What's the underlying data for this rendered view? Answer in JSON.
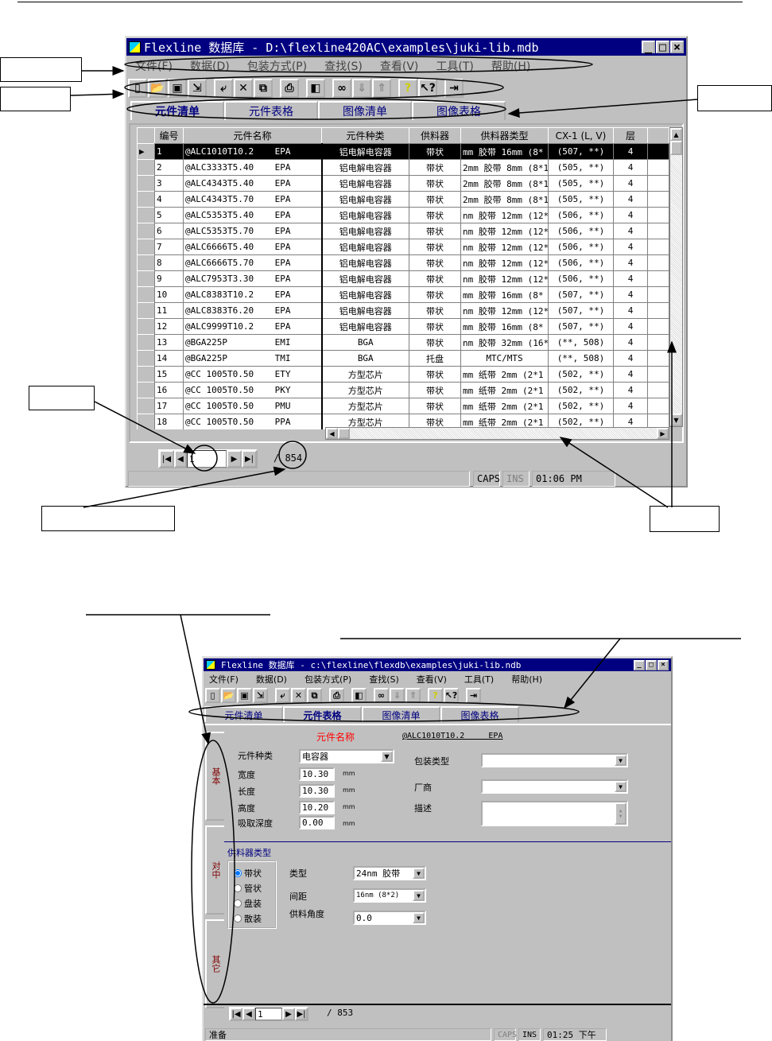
{
  "window1": {
    "title": "Flexline 数据库 - D:\\flexline420AC\\examples\\juki-lib.mdb",
    "menu": [
      "文件(F)",
      "数据(D)",
      "包装方式(P)",
      "查找(S)",
      "查看(V)",
      "工具(T)",
      "帮助(H)"
    ],
    "toolbar_icons": [
      "new-icon",
      "open-icon",
      "save-icon",
      "import-icon",
      "insert-icon",
      "delete-icon",
      "copy-icon",
      "print-icon",
      "database-icon",
      "find-icon",
      "sort-down-icon",
      "sort-up-icon",
      "help-icon",
      "context-help-icon",
      "exit-icon"
    ],
    "tabs": [
      "元件清单",
      "元件表格",
      "图像清单",
      "图像表格"
    ],
    "active_tab": "元件清单",
    "columns": [
      "编号",
      "元件名称",
      "元件种类",
      "供料器",
      "供料器类型",
      "CX-1 (L, V)",
      "层"
    ],
    "rows": [
      [
        "1",
        "@ALC1010T10.2    EPA",
        "铝电解电容器",
        "带状",
        "mm 胶带 16mm (8*",
        "(507, **)",
        "4"
      ],
      [
        "2",
        "@ALC3333T5.40    EPA",
        "铝电解电容器",
        "带状",
        "2mm 胶带 8mm (8*1",
        "(505, **)",
        "4"
      ],
      [
        "3",
        "@ALC4343T5.40    EPA",
        "铝电解电容器",
        "带状",
        "2mm 胶带 8mm (8*1",
        "(505, **)",
        "4"
      ],
      [
        "4",
        "@ALC4343T5.70    EPA",
        "铝电解电容器",
        "带状",
        "2mm 胶带 8mm (8*1",
        "(505, **)",
        "4"
      ],
      [
        "5",
        "@ALC5353T5.40    EPA",
        "铝电解电容器",
        "带状",
        "nm 胶带 12mm (12*",
        "(506, **)",
        "4"
      ],
      [
        "6",
        "@ALC5353T5.70    EPA",
        "铝电解电容器",
        "带状",
        "nm 胶带 12mm (12*",
        "(506, **)",
        "4"
      ],
      [
        "7",
        "@ALC6666T5.40    EPA",
        "铝电解电容器",
        "带状",
        "nm 胶带 12mm (12*",
        "(506, **)",
        "4"
      ],
      [
        "8",
        "@ALC6666T5.70    EPA",
        "铝电解电容器",
        "带状",
        "nm 胶带 12mm (12*",
        "(506, **)",
        "4"
      ],
      [
        "9",
        "@ALC7953T3.30    EPA",
        "铝电解电容器",
        "带状",
        "nm 胶带 12mm (12*",
        "(506, **)",
        "4"
      ],
      [
        "10",
        "@ALC8383T10.2    EPA",
        "铝电解电容器",
        "带状",
        "mm 胶带 16mm (8*",
        "(507, **)",
        "4"
      ],
      [
        "11",
        "@ALC8383T6.20    EPA",
        "铝电解电容器",
        "带状",
        "nm 胶带 12mm (12*",
        "(507, **)",
        "4"
      ],
      [
        "12",
        "@ALC9999T10.2    EPA",
        "铝电解电容器",
        "带状",
        "mm 胶带 16mm (8*",
        "(507, **)",
        "4"
      ],
      [
        "13",
        "@BGA225P         EMI",
        "BGA",
        "带状",
        "nm 胶带 32mm (16*",
        "(**, 508)",
        "4"
      ],
      [
        "14",
        "@BGA225P         TMI",
        "BGA",
        "托盘",
        "MTC/MTS",
        "(**, 508)",
        "4"
      ],
      [
        "15",
        "@CC 1005T0.50    ETY",
        "方型芯片",
        "带状",
        "mm 纸带 2mm (2*1",
        "(502, **)",
        "4"
      ],
      [
        "16",
        "@CC 1005T0.50    PKY",
        "方型芯片",
        "带状",
        "mm 纸带 2mm (2*1",
        "(502, **)",
        "4"
      ],
      [
        "17",
        "@CC 1005T0.50    PMU",
        "方型芯片",
        "带状",
        "mm 纸带 2mm (2*1",
        "(502, **)",
        "4"
      ],
      [
        "18",
        "@CC 1005T0.50    PPA",
        "方型芯片",
        "带状",
        "mm 纸带 2mm (2*1",
        "(502, **)",
        "4"
      ]
    ],
    "record_value": "1",
    "record_total": "/ 854",
    "status": {
      "caps": "CAPS",
      "ins": "INS",
      "time": "01:06 PM"
    }
  },
  "window2": {
    "title": "Flexline 数据库 - c:\\flexline\\flexdb\\examples\\juki-lib.ndb",
    "menu": [
      "文件(F)",
      "数据(D)",
      "包装方式(P)",
      "查找(S)",
      "查看(V)",
      "工具(T)",
      "帮助(H)"
    ],
    "tabs": [
      "元件清单",
      "元件表格",
      "图像清单",
      "图像表格"
    ],
    "active_tab": "元件表格",
    "side_tabs": [
      "基本",
      "对中",
      "其它"
    ],
    "part_name_label": "元件名称",
    "part_name_value": "@ALC1010T10.2     EPA",
    "part_type_label": "元件种类",
    "part_type_value": "电容器",
    "width_label": "宽度",
    "width_value": "10.30",
    "length_label": "长度",
    "length_value": "10.30",
    "height_label": "高度",
    "height_value": "10.20",
    "pick_depth_label": "吸取深度",
    "pick_depth_value": "0.00",
    "unit": "mm",
    "package_type_label": "包装类型",
    "package_type_value": "",
    "vendor_label": "厂商",
    "vendor_value": "",
    "description_label": "描述",
    "description_value": "",
    "feeder_section": "供料器类型",
    "feeder_options": [
      "带状",
      "管状",
      "盘装",
      "散装"
    ],
    "feeder_selected": "带状",
    "type_label": "类型",
    "type_value": "24nm 胶带",
    "pitch_label": "间距",
    "pitch_value": "16nm (8*2)",
    "angle_label": "供料角度",
    "angle_value": "0.0",
    "record_value": "1",
    "record_total": "/ 853",
    "status": {
      "ready": "准备",
      "caps": "CAPS",
      "ins": "INS",
      "time": "01:25 下午"
    }
  }
}
